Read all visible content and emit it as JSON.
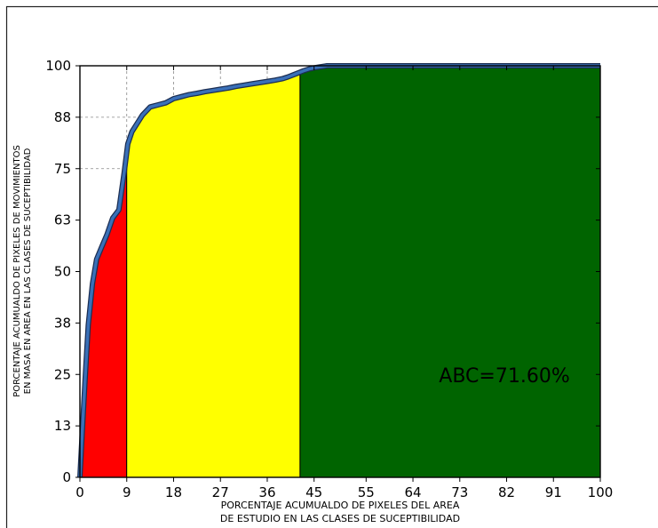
{
  "chart_data": {
    "type": "area",
    "title": "",
    "xlabel_lines": [
      "PORCENTAJE ACUMUALDO DE PIXELES DEL AREA",
      "DE ESTUDIO EN LAS CLASES DE SUCEPTIBILIDAD"
    ],
    "ylabel_lines": [
      "PORCENTAJE ACUMUALDO DE PIXELES  DE MOVIMIENTOS",
      "EN MASA EN AREA EN LAS CLASES DE SUCEPTIBILIDAD"
    ],
    "annotation": "ABC=71.60%",
    "xlim": [
      0,
      100
    ],
    "ylim": [
      0,
      100
    ],
    "xticks": [
      0,
      9,
      18,
      27,
      36,
      45,
      55,
      64,
      73,
      82,
      91,
      100
    ],
    "xtick_labels": [
      "0",
      "9",
      "18",
      "27",
      "36",
      "45",
      "55",
      "64",
      "73",
      "82",
      "91",
      "100"
    ],
    "yticks": [
      0,
      12.5,
      25,
      37.5,
      50,
      62.5,
      75,
      87.5,
      100
    ],
    "ytick_labels": [
      "0",
      "13",
      "25",
      "38",
      "50",
      "63",
      "75",
      "88",
      "100"
    ],
    "grid": true,
    "grid_style": "dashed",
    "grid_x_extent": [
      0,
      45
    ],
    "grid_y_extent": [
      75,
      100
    ],
    "curve": {
      "x": [
        0,
        0.5,
        1,
        1.6,
        2.4,
        3.2,
        4.2,
        5.2,
        6.3,
        7.5,
        8.5,
        9.2,
        10,
        11,
        12,
        13.5,
        15,
        16.5,
        18,
        19.5,
        21,
        22.5,
        24,
        25.5,
        27,
        28.5,
        30,
        31.5,
        33,
        34.5,
        36,
        37.5,
        39,
        40,
        41,
        42,
        43,
        44,
        45,
        46,
        47,
        47.5,
        100
      ],
      "y": [
        0,
        12,
        24,
        37,
        47,
        53,
        56,
        59,
        63,
        65,
        74,
        81,
        84,
        86,
        88,
        90,
        90.5,
        91,
        92,
        92.5,
        93,
        93.3,
        93.7,
        94,
        94.3,
        94.6,
        95,
        95.3,
        95.6,
        95.9,
        96.2,
        96.5,
        96.9,
        97.3,
        97.8,
        98.3,
        98.8,
        99.2,
        99.5,
        99.7,
        99.9,
        100,
        100
      ]
    },
    "regions": [
      {
        "x_start": 0,
        "x_end": 9,
        "color": "#ff0000"
      },
      {
        "x_start": 9,
        "x_end": 42.3,
        "color": "#ffff00"
      },
      {
        "x_start": 42.3,
        "x_end": 100,
        "color": "#006400"
      }
    ],
    "curve_color": "#3a70b8",
    "curve_edge_color": "#1c2e52"
  }
}
